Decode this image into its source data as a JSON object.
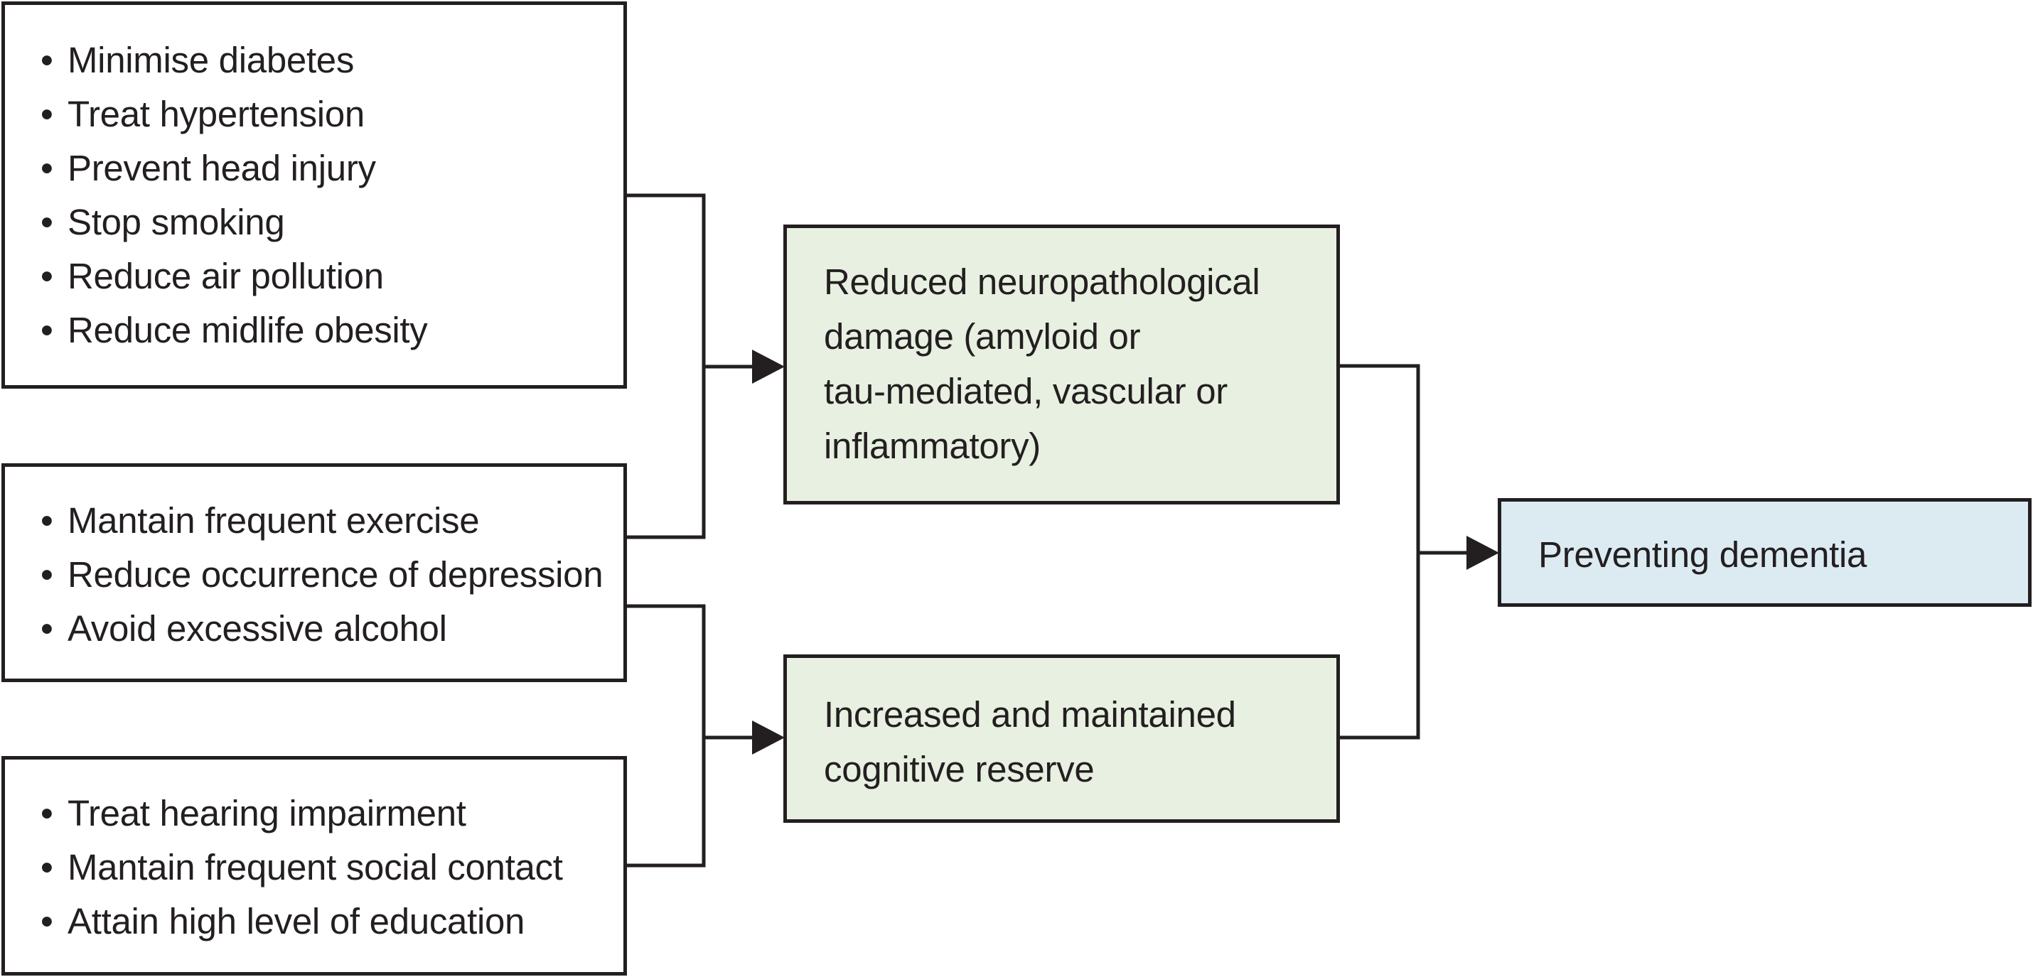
{
  "risk_factor_groups": [
    {
      "items": [
        "Minimise diabetes",
        "Treat hypertension",
        "Prevent head injury",
        "Stop smoking",
        "Reduce air pollution",
        "Reduce midlife obesity"
      ]
    },
    {
      "items": [
        "Mantain frequent exercise",
        "Reduce occurrence of depression",
        "Avoid excessive alcohol"
      ]
    },
    {
      "items": [
        "Treat hearing impairment",
        "Mantain frequent social contact",
        "Attain high level of education"
      ]
    }
  ],
  "mechanisms": [
    {
      "label": "Reduced neuropathological\ndamage (amyloid or\ntau-mediated, vascular or\ninflammatory)"
    },
    {
      "label": "Increased and maintained\ncognitive reserve"
    }
  ],
  "outcome": {
    "label": "Preventing dementia"
  },
  "bullet_symbol": "•",
  "colors": {
    "line": "#231f20",
    "mechanism_fill": "#e8f0e1",
    "outcome_fill": "#dcebf2",
    "box_fill": "#ffffff"
  }
}
